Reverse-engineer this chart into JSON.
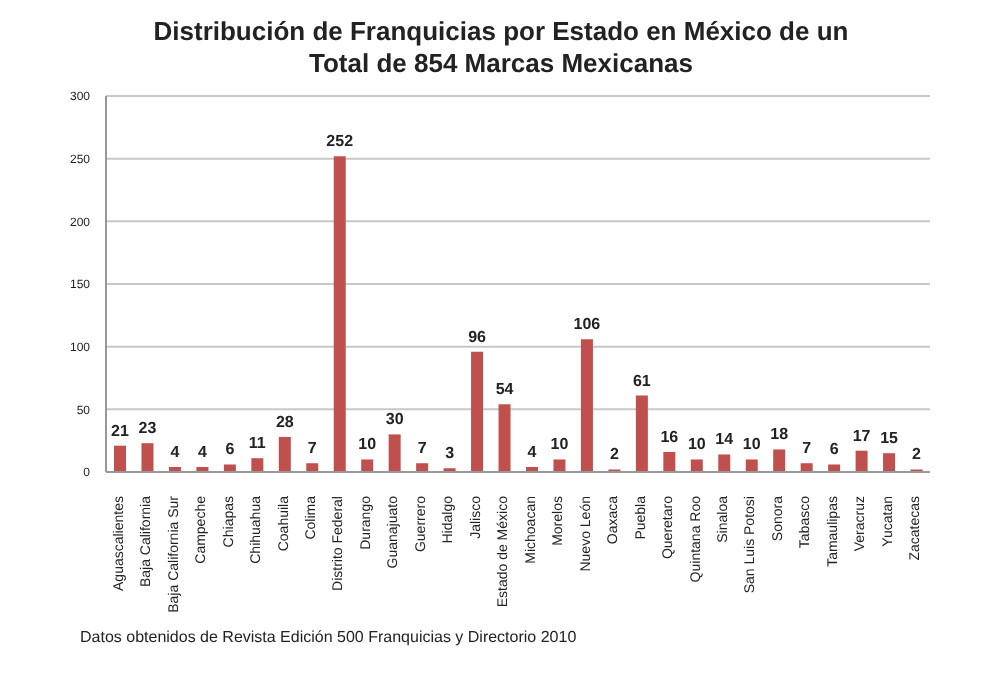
{
  "chart_data": {
    "type": "bar",
    "title": "Distribución de Franquicias por Estado en México de un Total de 854 Marcas Mexicanas",
    "categories": [
      "Aguascalientes",
      "Baja California",
      "Baja California Sur",
      "Campeche",
      "Chiapas",
      "Chihuahua",
      "Coahuila",
      "Colima",
      "Distrito Federal",
      "Durango",
      "Guanajuato",
      "Guerrero",
      "Hidalgo",
      "Jalisco",
      "Estado de México",
      "Michoacan",
      "Morelos",
      "Nuevo León",
      "Oaxaca",
      "Puebla",
      "Queretaro",
      "Quintana Roo",
      "Sinaloa",
      "San Luis Potosi",
      "Sonora",
      "Tabasco",
      "Tamaulipas",
      "Veracruz",
      "Yucatan",
      "Zacatecas"
    ],
    "values": [
      21,
      23,
      4,
      4,
      6,
      11,
      28,
      7,
      252,
      10,
      30,
      7,
      3,
      96,
      54,
      4,
      10,
      106,
      2,
      61,
      16,
      10,
      14,
      10,
      18,
      7,
      6,
      17,
      15,
      2
    ],
    "color": "#c0504d",
    "ylim": [
      0,
      300
    ],
    "yticks": [
      0,
      50,
      100,
      150,
      200,
      250,
      300
    ],
    "grid": "y",
    "data_labels": true,
    "annotations": [
      "Datos obtenidos de Revista Edición 500 Franquicias y Directorio 2010"
    ]
  }
}
